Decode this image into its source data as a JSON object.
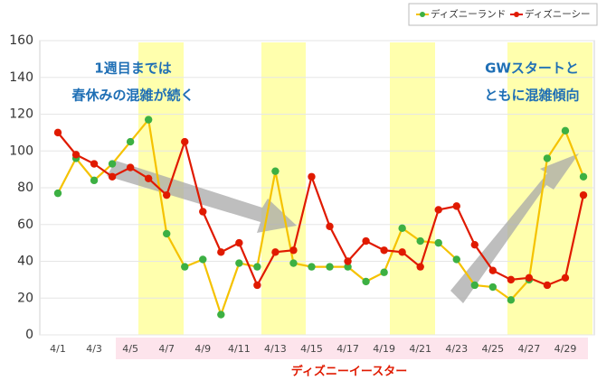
{
  "chart_data": {
    "type": "line",
    "categories": [
      "4/1",
      null,
      "4/3",
      null,
      "4/5",
      null,
      "4/7",
      null,
      "4/9",
      null,
      "4/11",
      null,
      "4/13",
      null,
      "4/15",
      null,
      "4/17",
      null,
      "4/19",
      null,
      "4/21",
      null,
      "4/23",
      null,
      "4/25",
      null,
      "4/27",
      null,
      "4/29",
      null
    ],
    "series": [
      {
        "name": "ディズニーランド",
        "color": "#f5c200",
        "marker_color": "#3cb043",
        "values": [
          77,
          96,
          84,
          93,
          105,
          117,
          55,
          37,
          41,
          11,
          39,
          37,
          89,
          39,
          37,
          37,
          37,
          29,
          34,
          58,
          51,
          50,
          41,
          27,
          26,
          19,
          30,
          96,
          111,
          86
        ]
      },
      {
        "name": "ディズニーシー",
        "color": "#e01a00",
        "marker_color": "#e01a00",
        "values": [
          110,
          98,
          93,
          86,
          91,
          85,
          76,
          105,
          67,
          45,
          50,
          27,
          45,
          46,
          86,
          59,
          40,
          51,
          46,
          45,
          37,
          68,
          70,
          49,
          35,
          30,
          31,
          27,
          31,
          76
        ]
      }
    ],
    "ylim": [
      0,
      160
    ],
    "yticks": [
      0,
      20,
      40,
      60,
      80,
      100,
      120,
      140,
      160
    ],
    "annotations": [
      "1週目までは",
      "春休みの混雑が続く",
      "GWスタートと",
      "ともに混雑傾向"
    ],
    "period_label": "ディズニーイースター"
  }
}
